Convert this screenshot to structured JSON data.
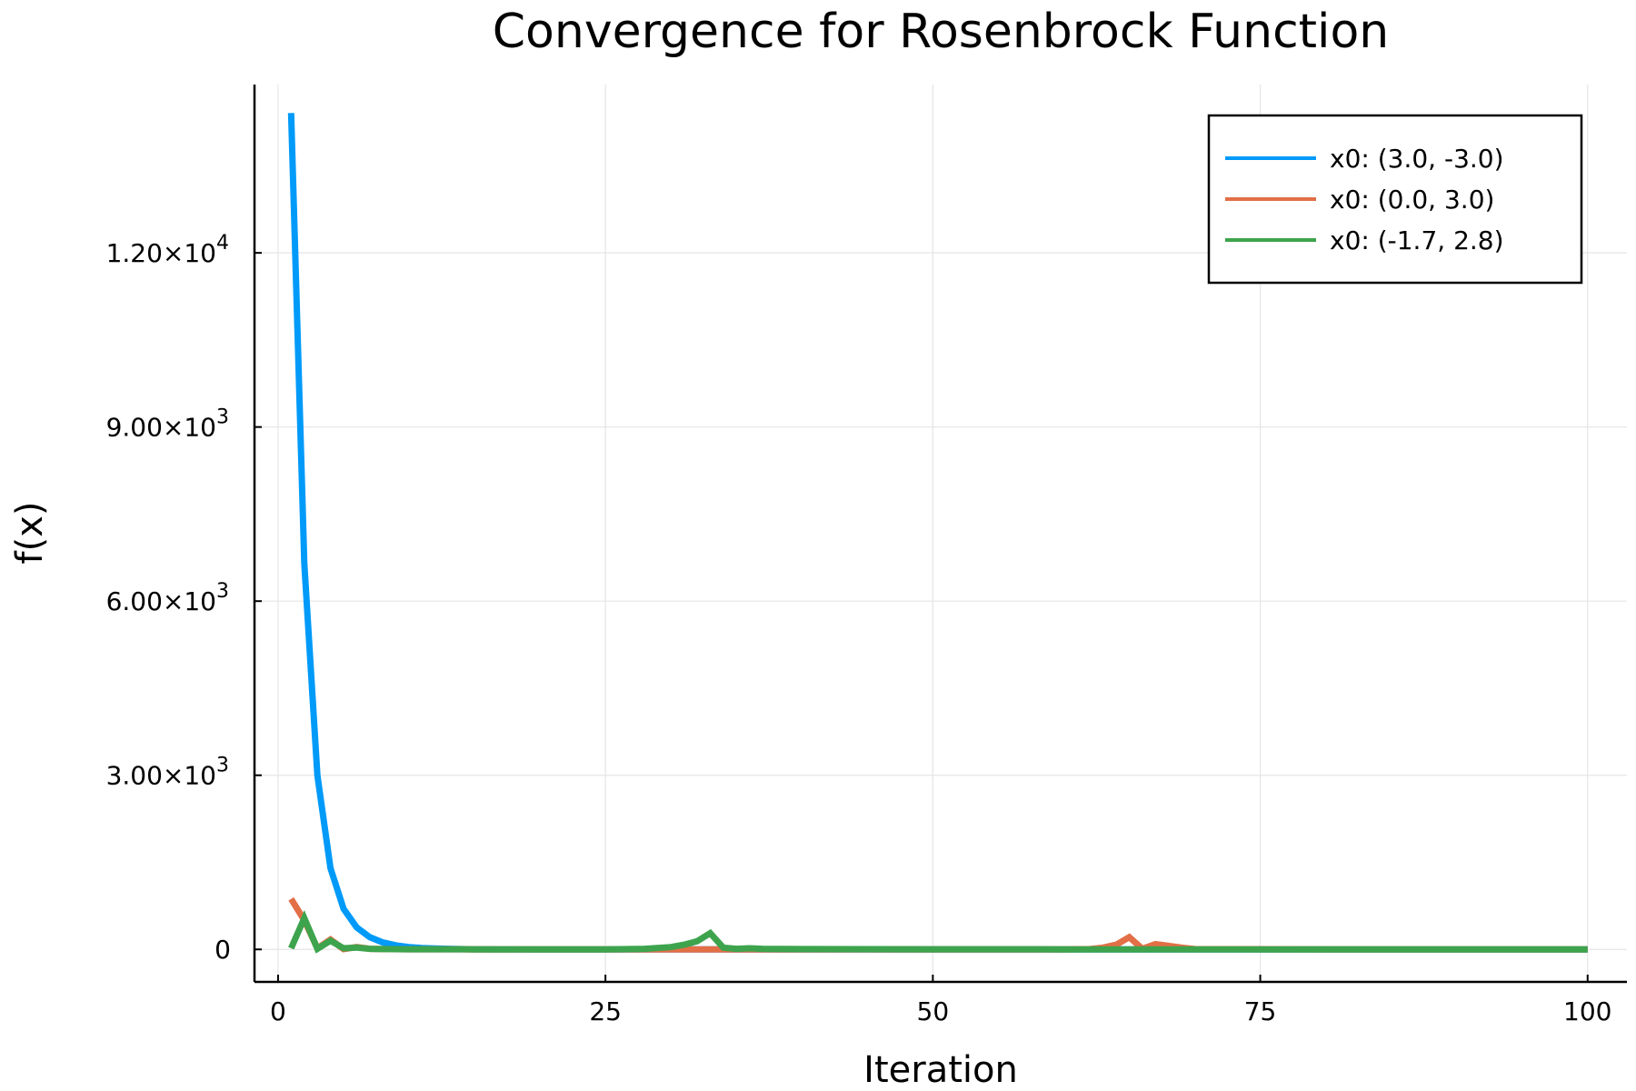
{
  "chart_data": {
    "type": "line",
    "title": "Convergence for Rosenbrock Function",
    "xlabel": "Iteration",
    "ylabel": "f(x)",
    "xlim": [
      -1.8,
      103
    ],
    "ylim": [
      -560,
      14900
    ],
    "xticks": [
      0,
      25,
      50,
      75,
      100
    ],
    "xtick_labels": [
      "0",
      "25",
      "50",
      "75",
      "100"
    ],
    "yticks": [
      0,
      3000,
      6000,
      9000,
      12000
    ],
    "ytick_labels": [
      {
        "mantissa": "0",
        "exp": ""
      },
      {
        "mantissa": "3.00×10",
        "exp": "3"
      },
      {
        "mantissa": "6.00×10",
        "exp": "3"
      },
      {
        "mantissa": "9.00×10",
        "exp": "3"
      },
      {
        "mantissa": "1.20×10",
        "exp": "4"
      }
    ],
    "grid": true,
    "legend_position": "top-right",
    "series": [
      {
        "name": "x0: (3.0, -3.0)",
        "color": "#009af9",
        "x": [
          1,
          2,
          3,
          4,
          5,
          6,
          7,
          8,
          9,
          10,
          11,
          12,
          13,
          14,
          15,
          20,
          30,
          40,
          50,
          60,
          70,
          80,
          90,
          100
        ],
        "y": [
          14410,
          6650,
          3000,
          1400,
          700,
          380,
          210,
          120,
          70,
          40,
          25,
          15,
          10,
          5,
          3,
          1,
          0.5,
          0.3,
          0.2,
          0.1,
          0.1,
          0.05,
          0.02,
          0.01
        ]
      },
      {
        "name": "x0: (0.0, 3.0)",
        "color": "#e26f46",
        "x": [
          1,
          2,
          3,
          4,
          5,
          6,
          7,
          8,
          10,
          15,
          20,
          30,
          40,
          50,
          60,
          62,
          63,
          64,
          65,
          66,
          67,
          68,
          69,
          70,
          80,
          90,
          100
        ],
        "y": [
          870,
          500,
          20,
          170,
          5,
          40,
          10,
          5,
          2,
          1,
          0.5,
          0.3,
          0.2,
          0.2,
          0.2,
          5,
          30,
          80,
          210,
          10,
          90,
          60,
          30,
          5,
          1,
          0.5,
          0.3
        ]
      },
      {
        "name": "x0: (-1.7, 2.8)",
        "color": "#3da44d",
        "x": [
          1,
          2,
          3,
          4,
          5,
          6,
          7,
          8,
          10,
          15,
          20,
          25,
          28,
          30,
          31,
          32,
          33,
          34,
          35,
          36,
          37,
          40,
          50,
          60,
          70,
          80,
          90,
          100
        ],
        "y": [
          20,
          540,
          10,
          150,
          20,
          30,
          10,
          5,
          2,
          1,
          0.5,
          0.5,
          10,
          40,
          80,
          140,
          280,
          30,
          10,
          20,
          10,
          5,
          2,
          1,
          0.5,
          0.3,
          0.2,
          0.1
        ]
      }
    ]
  }
}
